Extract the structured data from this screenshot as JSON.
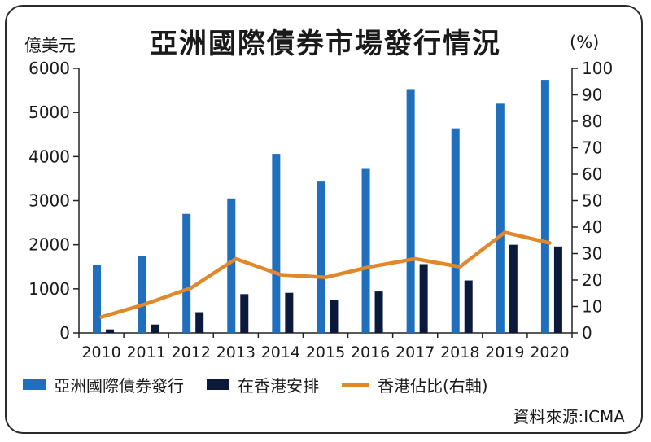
{
  "colors": {
    "asia": "#1f6fbd",
    "hk": "#0b1a3a",
    "share": "#e0882c",
    "axis": "#222222"
  },
  "header": {
    "title": "亞洲國際債券市場發行情況",
    "left_unit": "億美元",
    "right_unit": "(%)"
  },
  "legend": [
    {
      "label": "亞洲國際債券發行",
      "kind": "bar",
      "color": "#1f6fbd"
    },
    {
      "label": "在香港安排",
      "kind": "bar",
      "color": "#0b1a3a"
    },
    {
      "label": "香港佔比(右軸)",
      "kind": "line",
      "color": "#e0882c"
    }
  ],
  "source": "資料來源:ICMA",
  "chart_data": {
    "type": "bar",
    "categories": [
      "2010",
      "2011",
      "2012",
      "2013",
      "2014",
      "2015",
      "2016",
      "2017",
      "2018",
      "2019",
      "2020"
    ],
    "series": [
      {
        "name": "亞洲國際債券發行",
        "type": "bar",
        "axis": "left",
        "values": [
          1550,
          1740,
          2700,
          3050,
          4060,
          3450,
          3720,
          5530,
          4640,
          5200,
          5740
        ]
      },
      {
        "name": "在香港安排",
        "type": "bar",
        "axis": "left",
        "values": [
          80,
          190,
          470,
          880,
          910,
          750,
          940,
          1560,
          1190,
          2000,
          1960
        ]
      },
      {
        "name": "香港佔比(右軸)",
        "type": "line",
        "axis": "right",
        "values": [
          6,
          11,
          17,
          28,
          22,
          21,
          25,
          28,
          25,
          38,
          34
        ]
      }
    ],
    "y_left": {
      "min": 0,
      "max": 6000,
      "ticks": [
        "0",
        "1000",
        "2000",
        "3000",
        "4000",
        "5000",
        "6000"
      ]
    },
    "y_right": {
      "min": 0,
      "max": 100,
      "ticks": [
        "0",
        "10",
        "20",
        "30",
        "40",
        "50",
        "60",
        "70",
        "80",
        "90",
        "100"
      ]
    },
    "grid": false
  }
}
